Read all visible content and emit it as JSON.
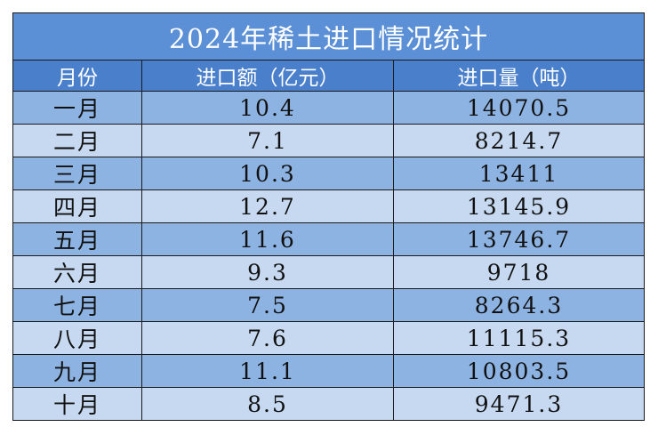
{
  "chart_data": {
    "type": "table",
    "title": "2024年稀土进口情况统计",
    "columns": [
      "月份",
      "进口额（亿元）",
      "进口量（吨）"
    ],
    "rows": [
      [
        "一月",
        "10.4",
        "14070.5"
      ],
      [
        "二月",
        "7.1",
        "8214.7"
      ],
      [
        "三月",
        "10.3",
        "13411"
      ],
      [
        "四月",
        "12.7",
        "13145.9"
      ],
      [
        "五月",
        "11.6",
        "13746.7"
      ],
      [
        "六月",
        "9.3",
        "9718"
      ],
      [
        "七月",
        "7.5",
        "8264.3"
      ],
      [
        "八月",
        "7.6",
        "11115.3"
      ],
      [
        "九月",
        "11.1",
        "10803.5"
      ],
      [
        "十月",
        "8.5",
        "9471.3"
      ]
    ]
  },
  "colors": {
    "title_bg": "#5b8fd6",
    "header_bg": "#4a7fcb",
    "row_dark": "#8db3e2",
    "row_light": "#c6d9f1",
    "border": "#1a1a1a"
  }
}
